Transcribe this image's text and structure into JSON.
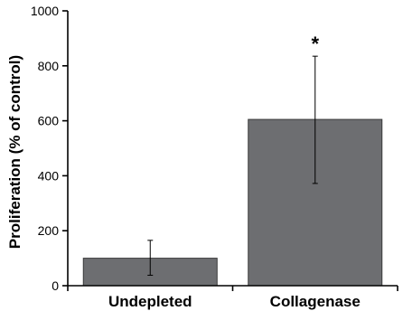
{
  "chart_data": {
    "type": "bar",
    "title": "",
    "xlabel": "",
    "ylabel": "Proliferation (% of control)",
    "ylim": [
      0,
      1000
    ],
    "yticks": [
      0,
      200,
      400,
      600,
      800,
      1000
    ],
    "categories": [
      "Undepleted",
      "Collagenase"
    ],
    "values": [
      100,
      605
    ],
    "error_low": [
      38,
      372
    ],
    "error_high": [
      165,
      835
    ],
    "annotations": [
      {
        "category": "Collagenase",
        "text": "*"
      }
    ],
    "grid": false,
    "legend": "none",
    "colors": {
      "bar": "#6d6e71",
      "bar_edge": "#3a3a3a",
      "axis": "#000000",
      "error": "#000000"
    }
  }
}
